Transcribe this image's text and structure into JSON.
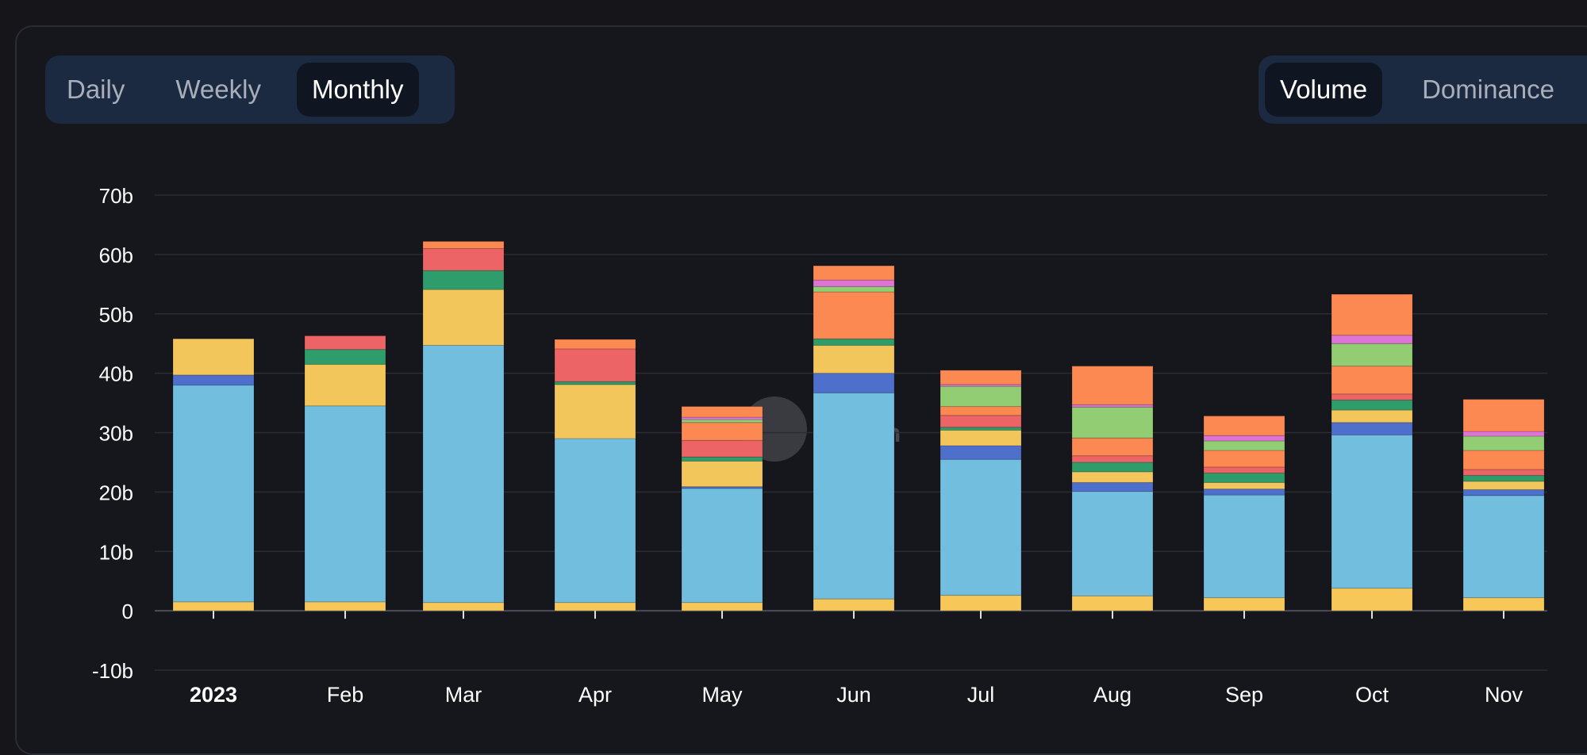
{
  "period_toggle": {
    "options": [
      "Daily",
      "Weekly",
      "Monthly"
    ],
    "selected": "Monthly"
  },
  "metric_toggle": {
    "options": [
      "Volume",
      "Dominance"
    ],
    "selected": "Volume"
  },
  "colors": {
    "background": "#16161a",
    "grid": "#2b2d34",
    "axis_text": "#ffffff",
    "series": [
      "#f7c859",
      "#72bedf",
      "#4f6fcc",
      "#f2c65a",
      "#2e9c6b",
      "#ec6466",
      "#fc8951",
      "#93cd73",
      "#de74d6"
    ]
  },
  "chart_data": {
    "type": "bar",
    "stacked": true,
    "categories": [
      "2023",
      "Feb",
      "Mar",
      "Apr",
      "May",
      "Jun",
      "Jul",
      "Aug",
      "Sep",
      "Oct",
      "Nov"
    ],
    "ylim": [
      -10,
      70
    ],
    "yticks": [
      "-10b",
      "0",
      "10b",
      "20b",
      "30b",
      "40b",
      "50b",
      "60b",
      "70b"
    ],
    "ytick_values": [
      -10,
      0,
      10,
      20,
      30,
      40,
      50,
      60,
      70
    ],
    "grid": true,
    "series": [
      {
        "color": "#f7c859",
        "values": [
          1.5,
          1.5,
          1.4,
          1.4,
          1.4,
          2.0,
          2.6,
          2.5,
          2.2,
          3.8,
          2.2
        ]
      },
      {
        "color": "#72bedf",
        "values": [
          36.5,
          33.0,
          43.3,
          27.6,
          19.2,
          34.7,
          22.9,
          17.6,
          17.3,
          25.8,
          17.2
        ]
      },
      {
        "color": "#4f6fcc",
        "values": [
          1.7,
          0,
          0,
          0,
          0.3,
          3.3,
          2.3,
          1.5,
          1.0,
          2.1,
          1.0
        ]
      },
      {
        "color": "#f2c65a",
        "values": [
          6.1,
          7.0,
          9.4,
          9.1,
          4.3,
          4.7,
          2.6,
          1.8,
          1.1,
          2.1,
          1.4
        ]
      },
      {
        "color": "#2e9c6b",
        "values": [
          0,
          2.5,
          3.2,
          0.5,
          0.7,
          1.1,
          0.5,
          1.6,
          1.6,
          1.7,
          1.0
        ]
      },
      {
        "color": "#ec6466",
        "values": [
          0,
          2.3,
          3.7,
          5.5,
          2.8,
          0,
          2.0,
          1.1,
          1.0,
          1.0,
          1.0
        ]
      },
      {
        "color": "#fc8951",
        "values": [
          0,
          0,
          1.2,
          1.6,
          3.0,
          7.9,
          1.5,
          3.0,
          2.8,
          4.7,
          3.2
        ]
      },
      {
        "color": "#93cd73",
        "values": [
          0,
          0,
          0,
          0,
          0.5,
          0.9,
          3.4,
          5.2,
          1.6,
          3.8,
          2.4
        ]
      },
      {
        "color": "#de74d6",
        "values": [
          0,
          0,
          0,
          0,
          0.4,
          1.1,
          0.3,
          0.4,
          0.9,
          1.4,
          0.8
        ]
      },
      {
        "color": "#fc8951",
        "values": [
          0,
          0,
          0,
          0,
          1.8,
          2.4,
          2.4,
          6.5,
          3.3,
          6.9,
          5.4
        ]
      }
    ]
  },
  "watermark": {
    "text": "lam"
  }
}
